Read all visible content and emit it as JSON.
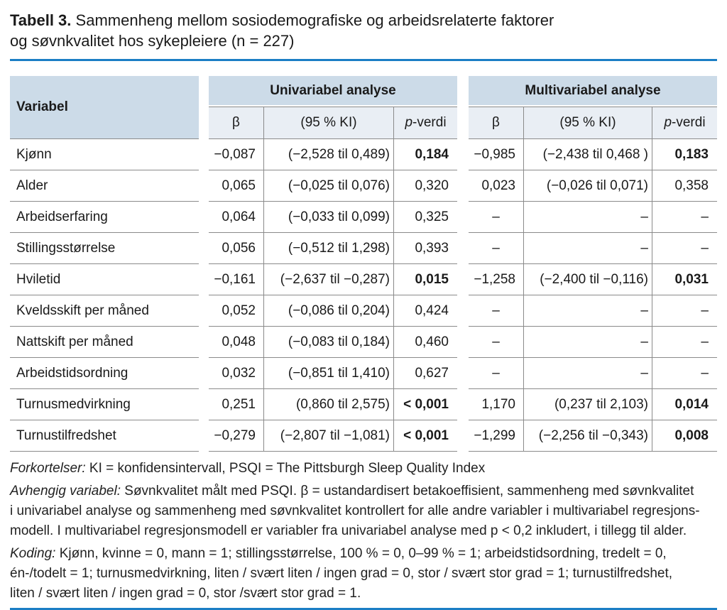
{
  "title": {
    "prefix": "Tabell 3.",
    "rest_line1": "Sammenheng mellom sosiodemografiske og arbeidsrelaterte faktorer",
    "rest_line2": "og søvnkvalitet hos sykepleiere (n = 227)"
  },
  "colors": {
    "accent_rule": "#1b7ec5",
    "header_band": "#ccdbe8",
    "subheader_band": "#e9eef4",
    "grid_line": "#8a8a8a"
  },
  "header": {
    "variable_col": "Variabel",
    "uni_group": "Univariabel analyse",
    "multi_group": "Multivariabel analyse",
    "beta": "β",
    "ki": "(95 % KI)",
    "p_italic": "p",
    "p_rest": "-verdi"
  },
  "table": {
    "rows": [
      {
        "c": [
          "Kjønn",
          "−0,087",
          "(−2,528 til 0,489)",
          "0,184",
          "−0,985",
          "(−2,438 til 0,468 )",
          "0,183"
        ]
      },
      {
        "c": [
          "Alder",
          "0,065",
          "(−0,025 til 0,076)",
          "0,320",
          "0,023",
          "(−0,026 til 0,071)",
          "0,358"
        ]
      },
      {
        "c": [
          "Arbeidserfaring",
          "0,064",
          "(−0,033 til 0,099)",
          "0,325",
          "–",
          "–",
          "–"
        ]
      },
      {
        "c": [
          "Stillingsstørrelse",
          "0,056",
          "(−0,512 til 1,298)",
          "0,393",
          "–",
          "–",
          "–"
        ]
      },
      {
        "c": [
          "Hviletid",
          "−0,161",
          "(−2,637 til −0,287)",
          "0,015",
          "−1,258",
          "(−2,400 til −0,116)",
          "0,031"
        ]
      },
      {
        "c": [
          "Kveldsskift per måned",
          "0,052",
          "(−0,086 til 0,204)",
          "0,424",
          "–",
          "–",
          "–"
        ]
      },
      {
        "c": [
          "Nattskift per måned",
          "0,048",
          "(−0,083 til 0,184)",
          "0,460",
          "–",
          "–",
          "–"
        ]
      },
      {
        "c": [
          "Arbeidstidsordning",
          "0,032",
          "(−0,851 til 1,410)",
          "0,627",
          "–",
          "–",
          "–"
        ]
      },
      {
        "c": [
          "Turnusmedvirkning",
          "0,251",
          "(0,860 til 2,575)",
          "< 0,001",
          "1,170",
          "(0,237 til 2,103)",
          "0,014"
        ]
      },
      {
        "c": [
          "Turnustilfredshet",
          "−0,279",
          "(−2,807 til −1,081)",
          "< 0,001",
          "−1,299",
          "(−2,256 til −0,343)",
          "0,008"
        ]
      }
    ]
  },
  "notes": [
    {
      "label": "Forkortelser:",
      "lines": [
        "KI = konfidensintervall, PSQI = The Pittsburgh Sleep Quality Index"
      ]
    },
    {
      "label": "Avhengig variabel:",
      "lines": [
        "Søvnkvalitet målt med PSQI. β = ustandardisert betakoeffisient, sammenheng med søvnkvalitet",
        "i univariabel analyse og sammenheng med søvnkvalitet kontrollert for alle andre variabler i multivariabel regresjons-",
        "modell. I multivariabel regresjonsmodell er variabler fra univariabel analyse med p < 0,2 inkludert, i tillegg til alder."
      ]
    },
    {
      "label": "Koding:",
      "lines": [
        "Kjønn, kvinne = 0, mann = 1; stillingsstørrelse, 100 % = 0, 0–99 % = 1; arbeidstidsordning, tredelt = 0,",
        "én-/todelt = 1; turnusmedvirkning, liten / svært liten / ingen grad = 0, stor / svært stor grad = 1; turnustilfredshet,",
        "liten / svært liten / ingen grad = 0, stor /svært stor grad = 1."
      ]
    }
  ]
}
